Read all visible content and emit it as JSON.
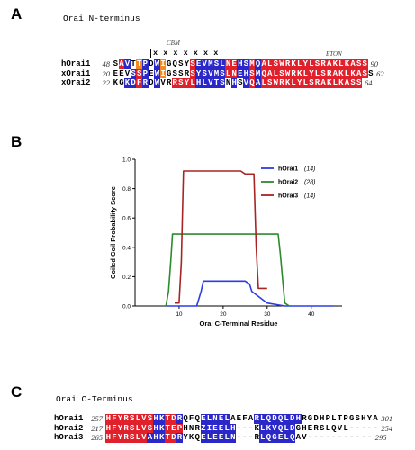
{
  "panelA": {
    "letter": "A",
    "title": "Orai N-terminus",
    "cbm_label": "CBM",
    "eton_label": "ETON",
    "motif": "x x x x x x x",
    "rows": [
      {
        "name": "hOrai1",
        "start": "48",
        "end": "90",
        "seq": "SAVTTPDWIGQSYSEVMSLNEHSMQALSWRKLYLSRAKLKASS",
        "colors": "wrbwobwbowwwwrbbbbbrrbbrbrrrrrrrrrrrrrrrrrr"
      },
      {
        "name": "xOrai1",
        "start": "20",
        "end": "62",
        "seq": "EEVSSPEWIGSSRSYSVMSLNEHSMQALSWRKLYLSRAKLKASS",
        "colors": "wwwbrbwbowwwwrbbbbbrrbbrbrrrrrrrrrrrrrrrrrr"
      },
      {
        "name": "xOrai2",
        "start": "22",
        "end": "64",
        "seq": "KGKDFRDWVRRSYLHLVTSNHSVQALSWRKLYLSRAKLKASS",
        "colors": "wwbbrbwbwwrrrrbbbbbwbwbrbrrrrrrrrrrrrrrrrr"
      }
    ]
  },
  "panelB": {
    "letter": "B"
  },
  "chart_data": {
    "type": "line",
    "xlabel": "Orai C-Terminal Residue",
    "ylabel": "Coiled Coil Probability Score",
    "xlim": [
      0,
      47
    ],
    "ylim": [
      0,
      1.0
    ],
    "xticks": [
      "10",
      "20",
      "30",
      "40"
    ],
    "yticks": [
      "0.0",
      "0.2",
      "0.4",
      "0.6",
      "0.8",
      "1.0"
    ],
    "legend_position": "top-right",
    "series": [
      {
        "name": "hOrai1",
        "count": "(14)",
        "color": "#2b3ee0",
        "x": [
          7,
          13,
          14,
          15,
          15.5,
          23,
          24,
          25,
          26,
          26.5,
          30,
          34,
          45
        ],
        "y": [
          0.0,
          0.0,
          0.0,
          0.1,
          0.17,
          0.17,
          0.17,
          0.17,
          0.15,
          0.1,
          0.02,
          0.0,
          0.0
        ]
      },
      {
        "name": "hOrai2",
        "count": "(28)",
        "color": "#2e8a2e",
        "x": [
          7,
          7.6,
          8.1,
          8.5,
          32,
          32.5,
          33,
          33.6,
          34,
          35
        ],
        "y": [
          0.0,
          0.1,
          0.3,
          0.49,
          0.49,
          0.49,
          0.35,
          0.15,
          0.02,
          0.0
        ]
      },
      {
        "name": "hOrai3",
        "count": "(14)",
        "color": "#a82424",
        "x": [
          9,
          10,
          10.5,
          11,
          23,
          24,
          25,
          26,
          27,
          27.5,
          28,
          30
        ],
        "y": [
          0.02,
          0.02,
          0.3,
          0.92,
          0.92,
          0.92,
          0.9,
          0.9,
          0.9,
          0.4,
          0.12,
          0.12
        ]
      }
    ]
  },
  "panelC": {
    "letter": "C",
    "title": "Orai C-Terminus",
    "rows": [
      {
        "name": "hOrai1",
        "start": "257",
        "end": "301",
        "seq": "HFYRSLVSHKTDRQFQELNELAEFARLQDQLDHRGDHPLTPGSHYA",
        "colors": "rrrrrrrrbbrrbwwwbbbbbwwwwbbbbbbbbwwwwwwwwwwwwww"
      },
      {
        "name": "hOrai2",
        "start": "217",
        "end": "254",
        "seq": "HFYRSLVSHKTEPHNRZIEELH---KLKVQLDGHERSLQVL-----",
        "colors": "rrrrrrrrbbrrrwwwbbbbbbwwwwbbbbbbwwwwwwwwwwwww"
      },
      {
        "name": "hOrai3",
        "start": "265",
        "end": "295",
        "seq": "HFYRSLVAHKTDRYKQELEELN---RLQGELQAV-----------",
        "colors": "rrrrrrrbbbrrbwwwbbbbbbwwwwbbbbbbwwwwwwwwwwwww"
      }
    ]
  }
}
